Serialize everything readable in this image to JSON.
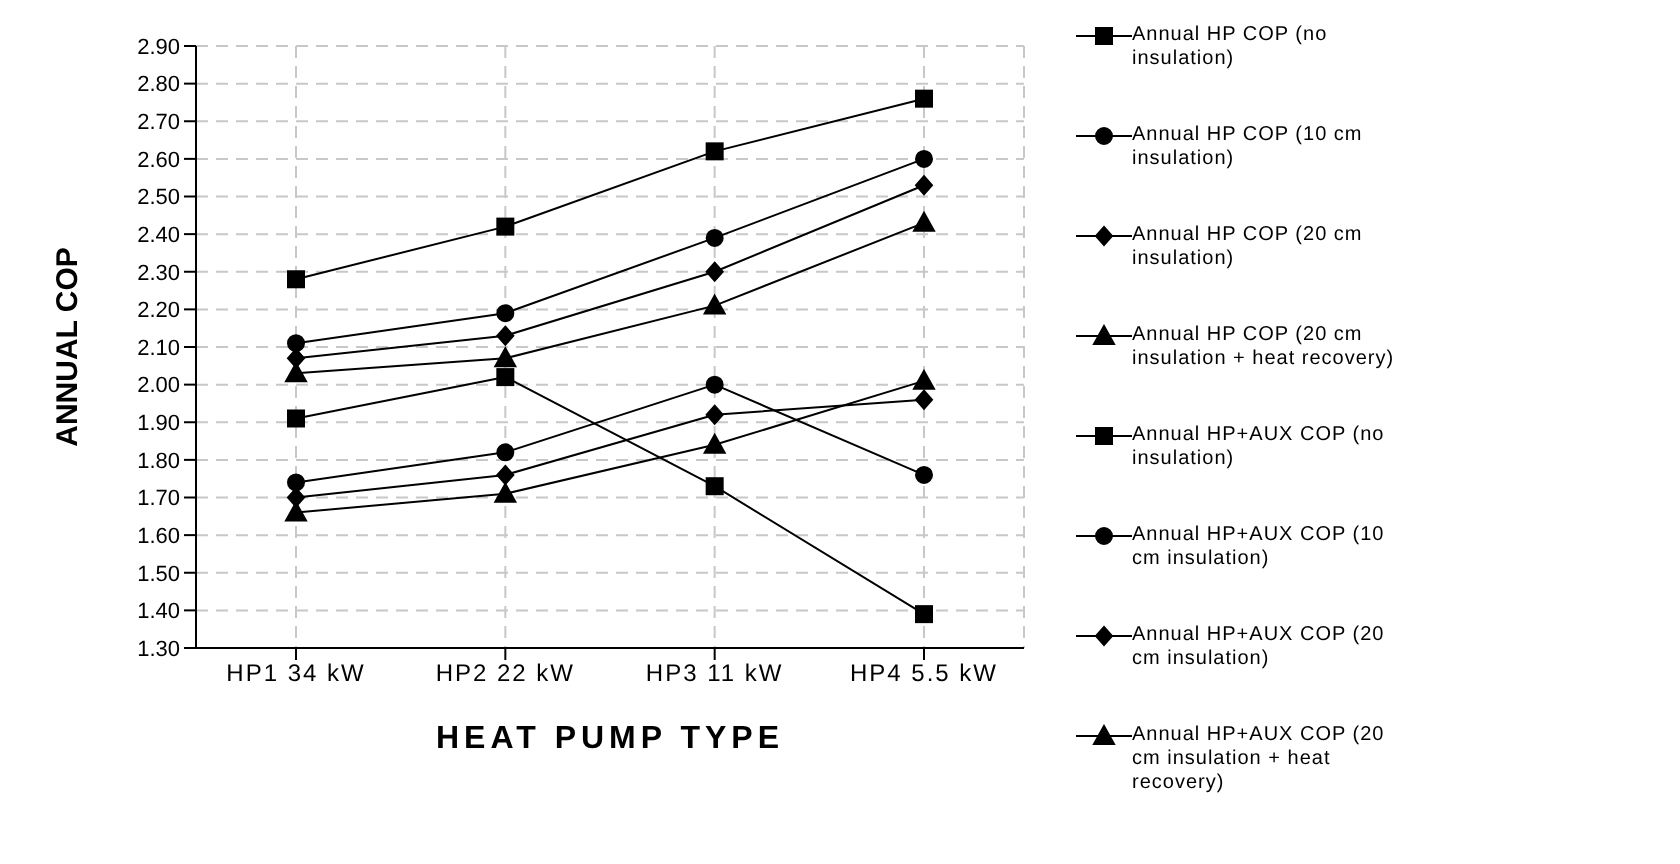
{
  "chart_data": {
    "type": "line",
    "xlabel": "HEAT PUMP TYPE",
    "ylabel": "ANNUAL COP",
    "categories": [
      "HP1   34 kW",
      "HP2  22 kW",
      "HP3     11 kW",
      "HP4     5.5 kW"
    ],
    "ylim": [
      1.3,
      2.9
    ],
    "yticks": [
      {
        "value": 1.3,
        "label": "1.30"
      },
      {
        "value": 1.4,
        "label": "1.40"
      },
      {
        "value": 1.5,
        "label": "1.50"
      },
      {
        "value": 1.6,
        "label": "1.60"
      },
      {
        "value": 1.7,
        "label": "1.70"
      },
      {
        "value": 1.8,
        "label": "1.80"
      },
      {
        "value": 1.9,
        "label": "1.90"
      },
      {
        "value": 2.0,
        "label": "2.00"
      },
      {
        "value": 2.1,
        "label": "2.10"
      },
      {
        "value": 2.2,
        "label": "2.20"
      },
      {
        "value": 2.3,
        "label": "2.30"
      },
      {
        "value": 2.4,
        "label": "2.40"
      },
      {
        "value": 2.5,
        "label": "2.50"
      },
      {
        "value": 2.6,
        "label": "2.60"
      },
      {
        "value": 2.7,
        "label": "2.70"
      },
      {
        "value": 2.8,
        "label": "2.80"
      },
      {
        "value": 2.9,
        "label": "2.90"
      }
    ],
    "grid": true,
    "legend": "right",
    "line_style": "solid",
    "series": [
      {
        "name": "Annual HP COP (no insulation)",
        "color": "#000000",
        "marker": "square",
        "values": [
          2.28,
          2.42,
          2.62,
          2.76
        ]
      },
      {
        "name": "Annual HP COP (10 cm insulation)",
        "color": "#000000",
        "marker": "circle",
        "values": [
          2.11,
          2.19,
          2.39,
          2.6
        ]
      },
      {
        "name": "Annual HP COP (20 cm insulation)",
        "color": "#000000",
        "marker": "diamond",
        "values": [
          2.07,
          2.13,
          2.3,
          2.53
        ]
      },
      {
        "name": "Annual HP COP (20 cm insulation + heat recovery)",
        "color": "#000000",
        "marker": "triangle",
        "values": [
          2.03,
          2.07,
          2.21,
          2.43
        ]
      },
      {
        "name": "Annual HP+AUX COP (no insulation)",
        "color": "#000000",
        "marker": "square",
        "values": [
          1.91,
          2.02,
          1.73,
          1.39
        ]
      },
      {
        "name": "Annual HP+AUX COP (10 cm insulation)",
        "color": "#000000",
        "marker": "circle",
        "values": [
          1.74,
          1.82,
          2.0,
          1.76
        ]
      },
      {
        "name": "Annual HP+AUX COP (20 cm insulation)",
        "color": "#000000",
        "marker": "diamond",
        "values": [
          1.7,
          1.76,
          1.92,
          1.96
        ]
      },
      {
        "name": "Annual HP+AUX COP (20 cm insulation + heat recovery)",
        "color": "#000000",
        "marker": "triangle",
        "values": [
          1.66,
          1.71,
          1.84,
          2.01
        ]
      }
    ]
  }
}
